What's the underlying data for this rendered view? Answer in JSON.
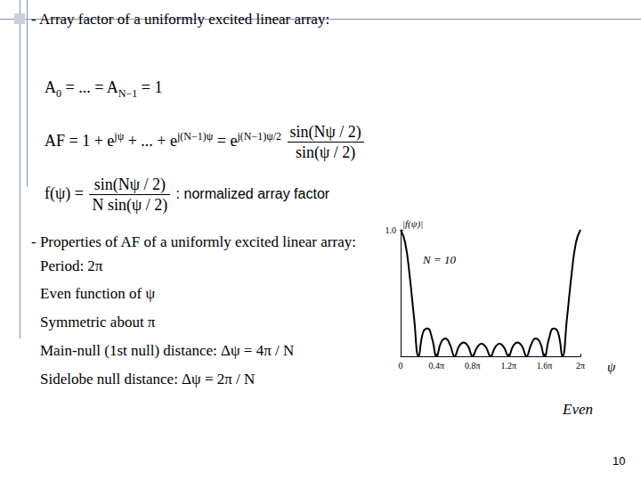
{
  "slide": {
    "heading1": "- Array factor of a uniformly excited linear array:",
    "equations": [
      [
        "A",
        {
          "sub": "0"
        },
        " = ... = A",
        {
          "sub": "N−1"
        },
        " = 1"
      ],
      [
        "AF = 1 + e",
        {
          "sup": "jψ"
        },
        " + ... + e",
        {
          "sup": "j(N−1)ψ"
        },
        " = e",
        {
          "sup": "j(N−1)ψ/2"
        },
        " ",
        {
          "frac": [
            "sin(Nψ / 2)",
            "sin(ψ / 2)"
          ]
        }
      ],
      [
        "f(ψ) = ",
        {
          "frac": [
            "sin(Nψ / 2)",
            "N sin(ψ / 2)"
          ]
        },
        {
          "plain": " : normalized array factor"
        }
      ]
    ],
    "heading2": "- Properties of AF of a uniformly excited linear array:",
    "properties": [
      "Period: 2π",
      "Even function of ψ",
      "Symmetric about π",
      "Main-null (1st null) distance: Δψ = 4π / N",
      "Sidelobe null distance: Δψ = 2π / N"
    ],
    "note": "Even",
    "page_number": "10"
  },
  "chart_data": {
    "type": "line",
    "x_label": "ψ",
    "y_label": "|f(ψ)|",
    "annotations": [
      "N = 10"
    ],
    "color": "#000000",
    "x": [
      0,
      0.05,
      0.1,
      0.15,
      0.2,
      0.25,
      0.3,
      0.35,
      0.4,
      0.45,
      0.5,
      0.55,
      0.6,
      0.65,
      0.7,
      0.75,
      0.8,
      0.85,
      0.9,
      0.95,
      1.0,
      1.05,
      1.1,
      1.15,
      1.2,
      1.25,
      1.3,
      1.35,
      1.4,
      1.45,
      1.5,
      1.55,
      1.6,
      1.65,
      1.7,
      1.75,
      1.8,
      1.85,
      1.9,
      1.95,
      2.0
    ],
    "values": [
      1,
      0.9,
      0.64,
      0.3,
      0,
      0.19,
      0.22,
      0.14,
      0,
      0.11,
      0.14,
      0.09,
      0,
      0.08,
      0.11,
      0.08,
      0,
      0.07,
      0.1,
      0.07,
      0,
      0.07,
      0.1,
      0.07,
      0,
      0.08,
      0.11,
      0.08,
      0,
      0.09,
      0.14,
      0.11,
      0,
      0.14,
      0.22,
      0.19,
      0,
      0.3,
      0.64,
      0.9,
      1
    ],
    "xlim": [
      0,
      2
    ],
    "xticks": [
      0,
      {
        "value": 0.4,
        "label": "0.4π"
      },
      {
        "value": 0.8,
        "label": "0.8π"
      },
      {
        "value": 1.2,
        "label": "1.2π"
      },
      {
        "value": 1.6,
        "label": "1.6π"
      },
      {
        "value": 2,
        "label": "2π"
      }
    ],
    "ylim": [
      0,
      1
    ],
    "yticks": [
      {
        "value": 1,
        "label": "1.0"
      }
    ],
    "grid": false
  }
}
